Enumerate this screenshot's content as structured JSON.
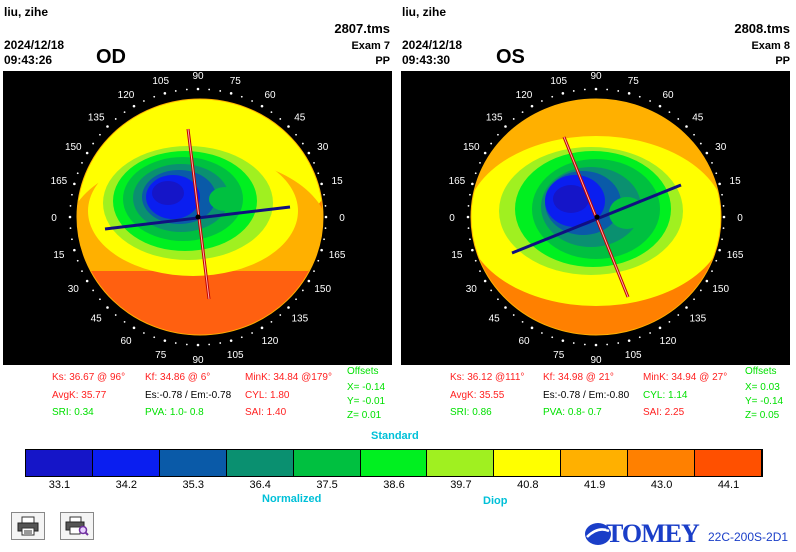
{
  "patient": {
    "name": "liu, zihe"
  },
  "od": {
    "date": "2024/12/18",
    "time": "09:43:26",
    "eye": "OD",
    "file": "2807.tms",
    "exam": "Exam 7",
    "mode": "PP",
    "stats": {
      "ks": "Ks: 36.67 @ 96°",
      "kf": "Kf: 34.86 @  6°",
      "mink": "MinK: 34.84 @179°",
      "avgk": "AvgK: 35.77",
      "es": "Es:-0.78 / Em:-0.78",
      "cyl": "CYL:  1.80",
      "sri": "SRI: 0.34",
      "pva": "PVA:  1.0-  0.8",
      "sai": "SAI: 1.40"
    },
    "offsets": {
      "title": "Offsets",
      "x": "X= -0.14",
      "y": "Y= -0.01",
      "z": "Z=  0.01"
    }
  },
  "os": {
    "date": "2024/12/18",
    "time": "09:43:30",
    "eye": "OS",
    "file": "2808.tms",
    "exam": "Exam 8",
    "mode": "PP",
    "stats": {
      "ks": "Ks: 36.12 @111°",
      "kf": "Kf: 34.98 @ 21°",
      "mink": "MinK: 34.94 @ 27°",
      "avgk": "AvgK: 35.55",
      "es": "Es:-0.78 / Em:-0.80",
      "cyl": "CYL:  1.14",
      "sri": "SRI: 0.86",
      "pva": "PVA:  0.8-  0.7",
      "sai": "SAI: 2.25"
    },
    "offsets": {
      "title": "Offsets",
      "x": "X=  0.03",
      "y": "Y= -0.14",
      "z": "Z=  0.05"
    }
  },
  "angles": [
    "0",
    "15",
    "30",
    "45",
    "60",
    "75",
    "90",
    "105",
    "120",
    "135",
    "150",
    "165"
  ],
  "scale": {
    "title": "Standard",
    "subtitle": "Normalized",
    "unit": "Diop",
    "values": [
      "33.1",
      "34.2",
      "35.3",
      "36.4",
      "37.5",
      "38.6",
      "39.7",
      "40.8",
      "41.9",
      "43.0",
      "44.1"
    ],
    "colors": [
      "#1515c8",
      "#0a1ef0",
      "#0a5aa8",
      "#0a9070",
      "#00c040",
      "#00f020",
      "#a0f020",
      "#ffff00",
      "#ffb000",
      "#ff8000",
      "#ff5000"
    ]
  },
  "brand": {
    "logo": "TOMEY",
    "code": "22C-200S-2D1"
  }
}
